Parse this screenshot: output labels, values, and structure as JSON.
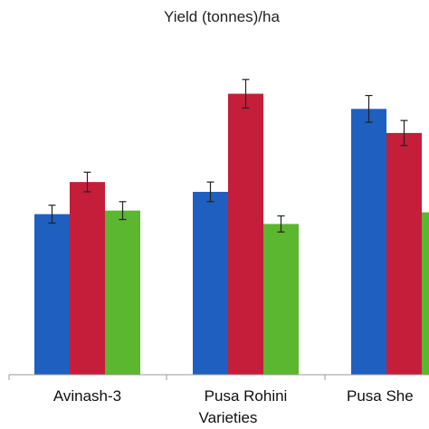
{
  "chart_data": {
    "type": "bar",
    "title": "Yield (tonnes)/ha",
    "xlabel": "Varieties",
    "ylabel": "",
    "categories": [
      "Avinash-3",
      "Pusa Rohini",
      "Pusa She"
    ],
    "series": [
      {
        "color": "#1f5fbf",
        "values": [
          180,
          205,
          298
        ],
        "errors": [
          10,
          11,
          15
        ]
      },
      {
        "color": "#c41e3a",
        "values": [
          216,
          315,
          271
        ],
        "errors": [
          11,
          16,
          14
        ]
      },
      {
        "color": "#5bb630",
        "values": [
          184,
          169,
          182
        ],
        "errors": [
          10,
          9,
          10
        ]
      }
    ],
    "ylim": [
      0,
      345
    ],
    "grid": false,
    "legend": "none"
  }
}
